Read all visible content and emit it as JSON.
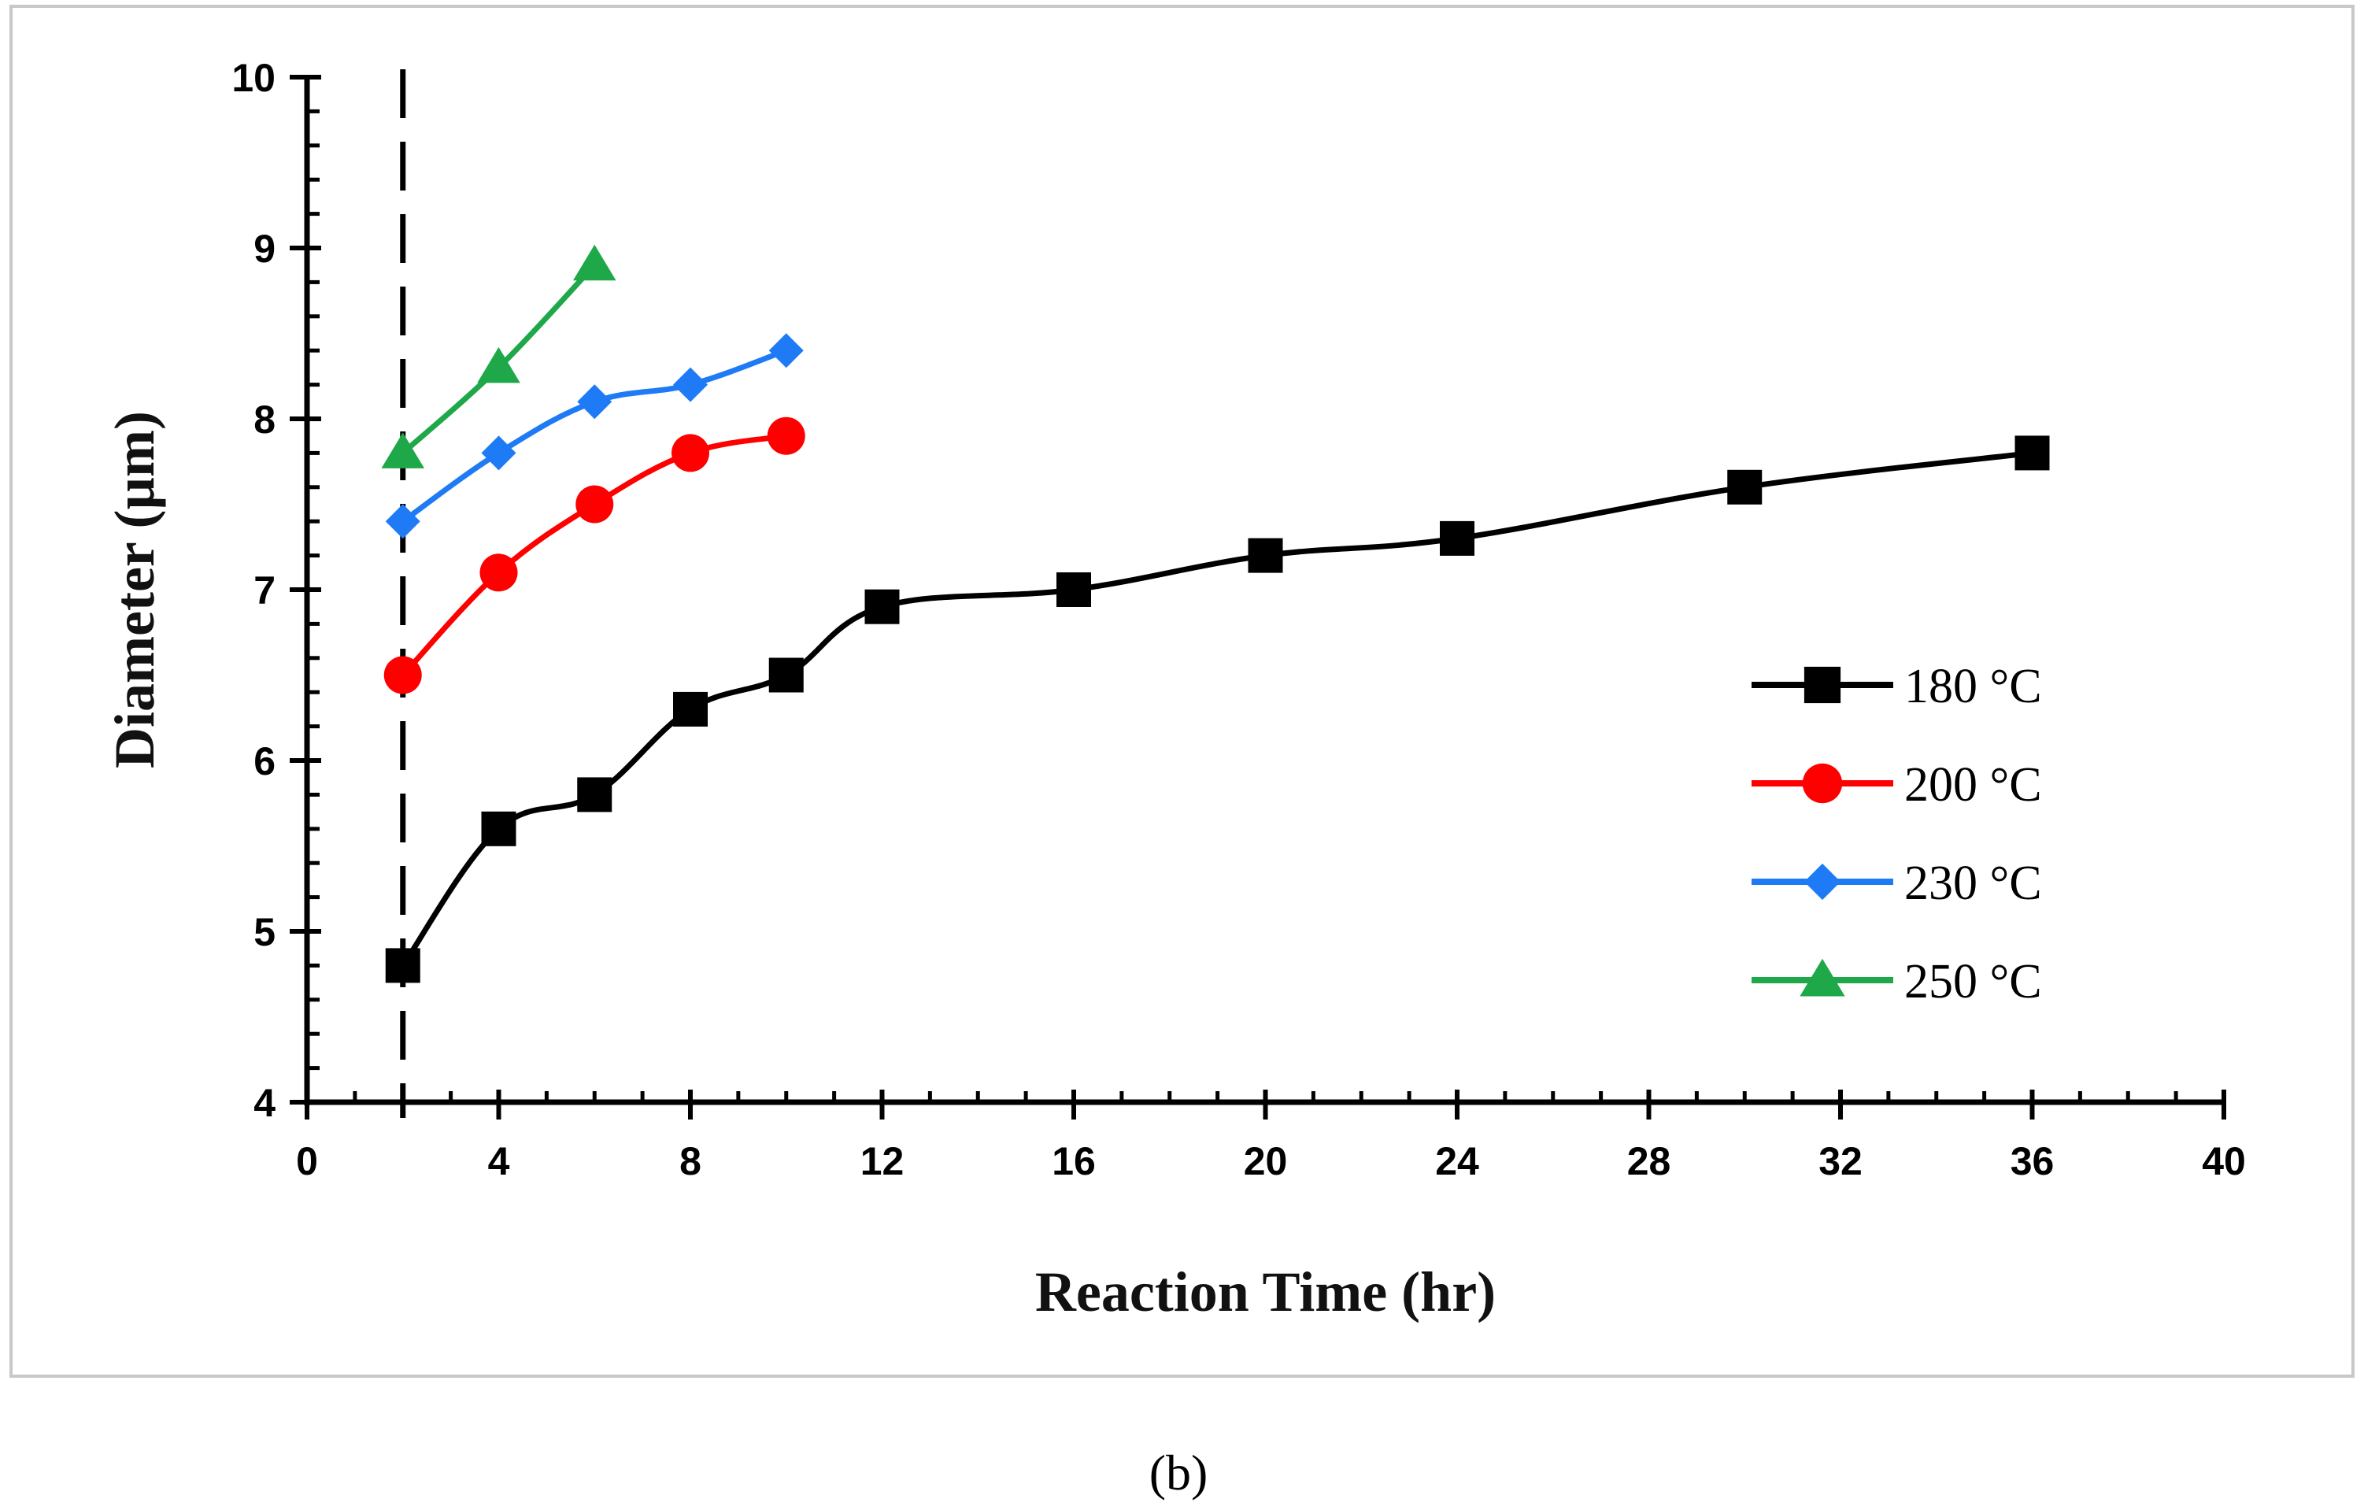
{
  "chart_data": {
    "type": "line",
    "xlabel": "Reaction Time (hr)",
    "ylabel": "Diameter (µm)",
    "xlim": [
      0,
      40
    ],
    "ylim": [
      4,
      10
    ],
    "x_ticks": [
      0,
      4,
      8,
      12,
      16,
      20,
      24,
      28,
      32,
      36,
      40
    ],
    "y_ticks": [
      4,
      5,
      6,
      7,
      8,
      9,
      10
    ],
    "grid": false,
    "legend_position": "right-center",
    "reference_line": {
      "x": 2,
      "style": "dashed"
    },
    "caption": "(b)",
    "series": [
      {
        "name": "180 °C",
        "color": "#000000",
        "marker": "square",
        "x": [
          2,
          4,
          6,
          8,
          10,
          12,
          16,
          20,
          24,
          30,
          36
        ],
        "y": [
          4.8,
          5.6,
          5.8,
          6.3,
          6.5,
          6.9,
          7.0,
          7.2,
          7.3,
          7.6,
          7.8
        ]
      },
      {
        "name": "200 °C",
        "color": "#ff0000",
        "marker": "circle",
        "x": [
          2,
          4,
          6,
          8,
          10
        ],
        "y": [
          6.5,
          7.1,
          7.5,
          7.8,
          7.9
        ]
      },
      {
        "name": "230 °C",
        "color": "#1e7bf5",
        "marker": "diamond",
        "x": [
          2,
          4,
          6,
          8,
          10
        ],
        "y": [
          7.4,
          7.8,
          8.1,
          8.2,
          8.4
        ]
      },
      {
        "name": "250 °C",
        "color": "#1fa84a",
        "marker": "triangle",
        "x": [
          2,
          4,
          6
        ],
        "y": [
          7.8,
          8.3,
          8.9
        ]
      }
    ]
  }
}
